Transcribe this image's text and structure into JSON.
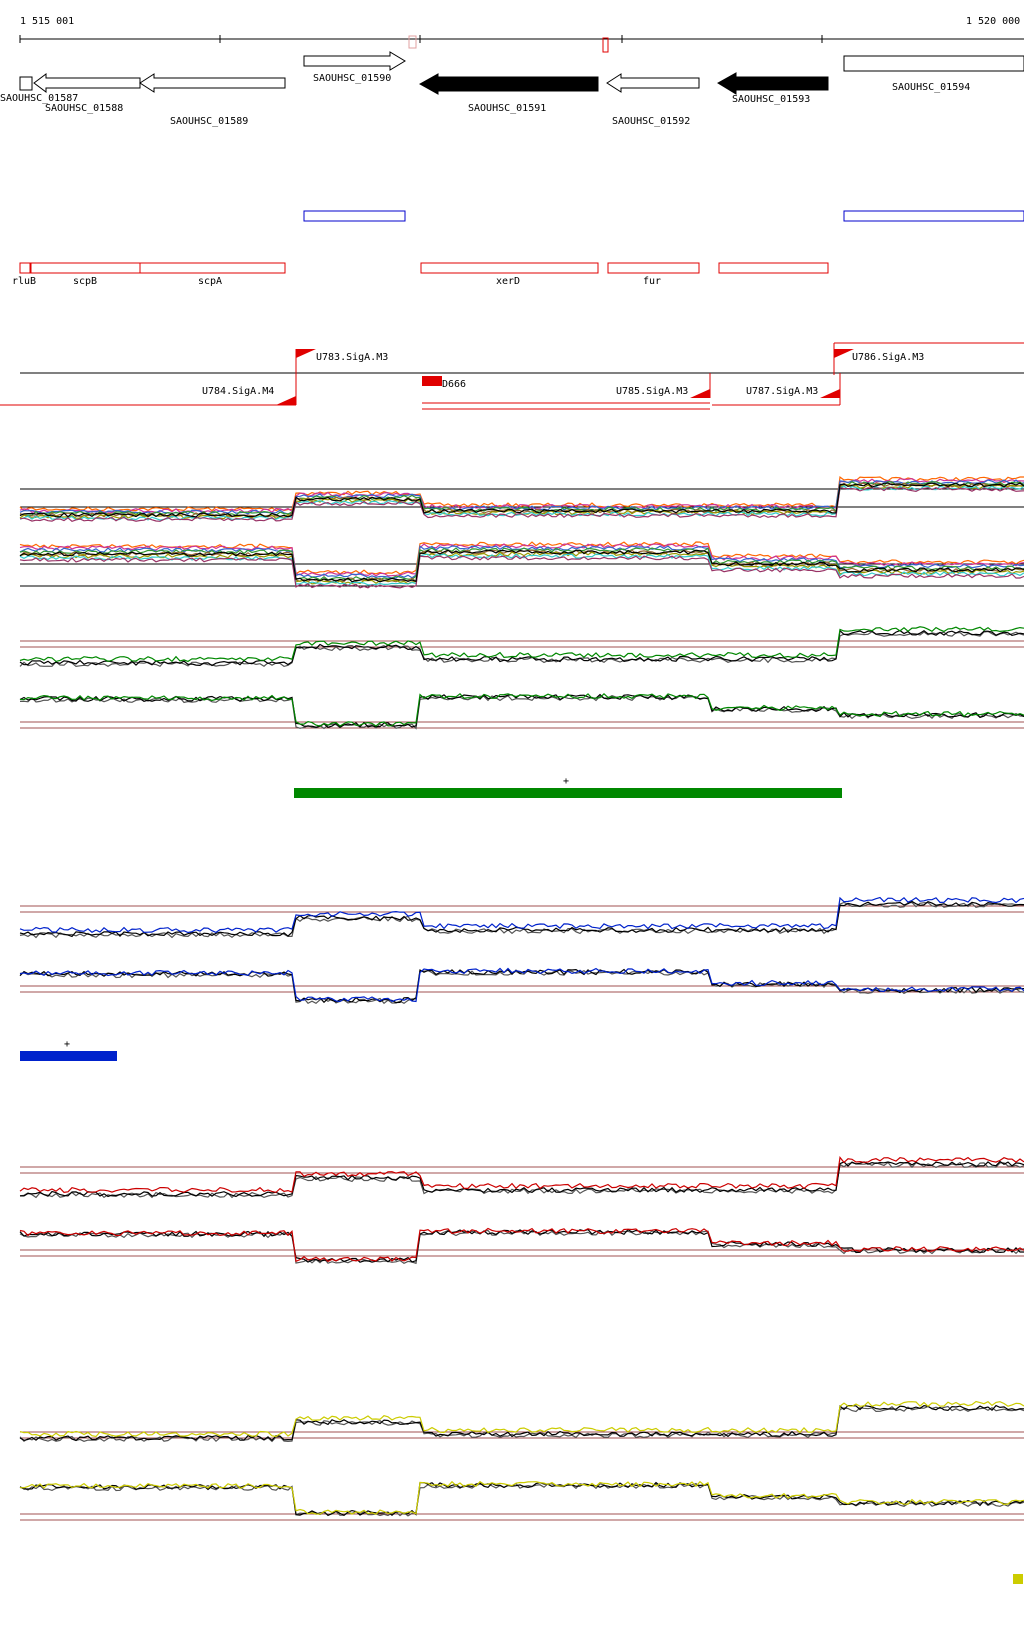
{
  "coords": {
    "start": "1 515 001",
    "end": "1 520 000"
  },
  "genes": [
    {
      "id": "gene-01587",
      "label": "SAOUHSC_01587",
      "strand": "-",
      "fill": "none"
    },
    {
      "id": "gene-01588",
      "label": "SAOUHSC_01588",
      "strand": "-",
      "fill": "none"
    },
    {
      "id": "gene-01589",
      "label": "SAOUHSC_01589",
      "strand": "-",
      "fill": "none"
    },
    {
      "id": "gene-01590",
      "label": "SAOUHSC_01590",
      "strand": "+",
      "fill": "none"
    },
    {
      "id": "gene-01591",
      "label": "SAOUHSC_01591",
      "strand": "-",
      "fill": "#000000"
    },
    {
      "id": "gene-01592",
      "label": "SAOUHSC_01592",
      "strand": "-",
      "fill": "none"
    },
    {
      "id": "gene-01593",
      "label": "SAOUHSC_01593",
      "strand": "-",
      "fill": "#000000"
    },
    {
      "id": "gene-01594",
      "label": "SAOUHSC_01594",
      "strand": "+",
      "fill": "none"
    }
  ],
  "protein_names": [
    "rluB",
    "scpB",
    "scpA",
    "xerD",
    "fur"
  ],
  "transcription_units": [
    "U783.SigA.M3",
    "U784.SigA.M4",
    "U785.SigA.M3",
    "U786.SigA.M3",
    "U787.SigA.M3"
  ],
  "downregulated_segment": "D666",
  "segment_marks": {
    "green": "+",
    "blue": "+"
  },
  "colors": {
    "gene_outline": "#000000",
    "feature_red": "#e00000",
    "feature_blue": "#0000cc",
    "green_track": "#008800",
    "blue_track": "#0022cc",
    "red_track": "#cc0000",
    "yellow_track": "#cccc00",
    "threshold_line": "#a05050"
  }
}
